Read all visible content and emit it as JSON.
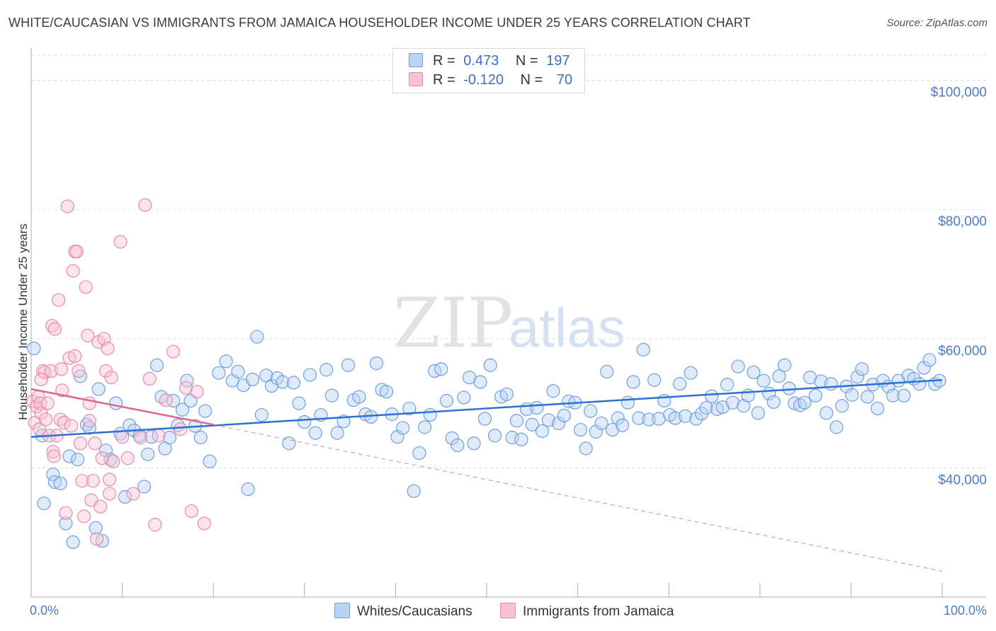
{
  "title": "WHITE/CAUCASIAN VS IMMIGRANTS FROM JAMAICA HOUSEHOLDER INCOME UNDER 25 YEARS CORRELATION CHART",
  "source": "Source: ZipAtlas.com",
  "watermark": {
    "zip": "ZIP",
    "atlas": "atlas"
  },
  "legend_top": [
    {
      "r_label": "R =",
      "r_value": "0.473",
      "n_label": "N =",
      "n_value": "197"
    },
    {
      "r_label": "R =",
      "r_value": "-0.120",
      "n_label": "N =",
      "n_value": "70"
    }
  ],
  "colors": {
    "blue_fill": "#b9d3f3",
    "blue_stroke": "#6f9fdc",
    "blue_line": "#2f6fd4",
    "pink_fill": "#f7c3d3",
    "pink_stroke": "#e88aab",
    "pink_line": "#e0648f",
    "grid": "#dddddd",
    "axis": "#aaaaaa",
    "tick_text": "#4a7cc8"
  },
  "chart_data": {
    "type": "scatter",
    "title": "WHITE/CAUCASIAN VS IMMIGRANTS FROM JAMAICA HOUSEHOLDER INCOME UNDER 25 YEARS CORRELATION CHART",
    "xlabel": "",
    "ylabel": "Householder Income Under 25 years",
    "xlim": [
      0,
      100
    ],
    "ylim": [
      20000,
      105000
    ],
    "x_tick_labels": [
      "0.0%",
      "100.0%"
    ],
    "y_ticks": [
      40000,
      60000,
      80000,
      100000
    ],
    "y_tick_labels": [
      "$40,000",
      "$60,000",
      "$80,000",
      "$100,000"
    ],
    "grid": true,
    "legend_placement": "bottom",
    "series": [
      {
        "name": "Whites/Caucasians",
        "color": "#6f9fdc",
        "trend": {
          "x0": 0,
          "y0": 44800,
          "x1": 100,
          "y1": 53600
        },
        "points": [
          [
            0.3,
            58500
          ],
          [
            1.2,
            45000
          ],
          [
            1.4,
            34500
          ],
          [
            2.4,
            39000
          ],
          [
            2.6,
            37800
          ],
          [
            3.2,
            37600
          ],
          [
            3.8,
            31400
          ],
          [
            4.2,
            41800
          ],
          [
            4.6,
            28500
          ],
          [
            5.1,
            41300
          ],
          [
            5.4,
            54200
          ],
          [
            6.1,
            46700
          ],
          [
            6.4,
            46200
          ],
          [
            7.1,
            30700
          ],
          [
            7.4,
            52200
          ],
          [
            7.8,
            28700
          ],
          [
            8.2,
            42700
          ],
          [
            8.7,
            41300
          ],
          [
            9.3,
            50000
          ],
          [
            9.8,
            45300
          ],
          [
            10.3,
            35500
          ],
          [
            10.8,
            46600
          ],
          [
            11.3,
            45800
          ],
          [
            11.9,
            45000
          ],
          [
            12.4,
            37100
          ],
          [
            12.8,
            42100
          ],
          [
            13.2,
            44800
          ],
          [
            13.8,
            55900
          ],
          [
            14.3,
            51000
          ],
          [
            14.7,
            43000
          ],
          [
            15.2,
            44700
          ],
          [
            15.6,
            50400
          ],
          [
            16.1,
            46600
          ],
          [
            16.6,
            49000
          ],
          [
            17.1,
            53500
          ],
          [
            17.5,
            50400
          ],
          [
            18.0,
            46500
          ],
          [
            18.6,
            44700
          ],
          [
            19.1,
            48800
          ],
          [
            19.6,
            41000
          ],
          [
            20.6,
            54700
          ],
          [
            21.4,
            56500
          ],
          [
            22.1,
            53500
          ],
          [
            22.7,
            54900
          ],
          [
            23.3,
            52800
          ],
          [
            23.8,
            36700
          ],
          [
            24.3,
            53700
          ],
          [
            24.8,
            60300
          ],
          [
            25.3,
            48200
          ],
          [
            25.8,
            54300
          ],
          [
            26.4,
            52700
          ],
          [
            27.0,
            53900
          ],
          [
            27.6,
            53300
          ],
          [
            28.3,
            43800
          ],
          [
            28.8,
            53200
          ],
          [
            29.4,
            50000
          ],
          [
            30.0,
            47100
          ],
          [
            30.6,
            54400
          ],
          [
            31.2,
            45400
          ],
          [
            31.8,
            48200
          ],
          [
            32.4,
            55200
          ],
          [
            33.0,
            51200
          ],
          [
            33.6,
            45400
          ],
          [
            34.3,
            47200
          ],
          [
            34.8,
            55900
          ],
          [
            35.4,
            50500
          ],
          [
            36.0,
            51000
          ],
          [
            36.7,
            48300
          ],
          [
            37.3,
            47900
          ],
          [
            37.9,
            56200
          ],
          [
            38.5,
            52100
          ],
          [
            39.0,
            51800
          ],
          [
            39.6,
            48300
          ],
          [
            40.2,
            44800
          ],
          [
            40.8,
            46200
          ],
          [
            41.5,
            49200
          ],
          [
            42.0,
            36400
          ],
          [
            42.6,
            42300
          ],
          [
            43.2,
            46300
          ],
          [
            43.8,
            48200
          ],
          [
            44.3,
            55000
          ],
          [
            45.0,
            55300
          ],
          [
            45.6,
            50400
          ],
          [
            46.2,
            44600
          ],
          [
            46.8,
            43500
          ],
          [
            47.5,
            50900
          ],
          [
            48.1,
            54000
          ],
          [
            48.6,
            43800
          ],
          [
            49.3,
            53300
          ],
          [
            49.8,
            47600
          ],
          [
            50.4,
            55900
          ],
          [
            50.9,
            45000
          ],
          [
            51.6,
            51000
          ],
          [
            52.2,
            51400
          ],
          [
            52.8,
            44700
          ],
          [
            53.3,
            47300
          ],
          [
            53.8,
            44400
          ],
          [
            54.4,
            49100
          ],
          [
            55.0,
            46700
          ],
          [
            55.5,
            49300
          ],
          [
            56.1,
            45700
          ],
          [
            56.8,
            47400
          ],
          [
            57.3,
            51900
          ],
          [
            57.9,
            46900
          ],
          [
            58.5,
            48100
          ],
          [
            59.0,
            50300
          ],
          [
            59.7,
            50100
          ],
          [
            60.3,
            45900
          ],
          [
            60.9,
            43000
          ],
          [
            61.4,
            48800
          ],
          [
            62.0,
            45600
          ],
          [
            62.6,
            46900
          ],
          [
            63.2,
            54900
          ],
          [
            63.8,
            45900
          ],
          [
            64.4,
            47700
          ],
          [
            64.9,
            46600
          ],
          [
            65.5,
            50100
          ],
          [
            66.1,
            53300
          ],
          [
            66.7,
            47700
          ],
          [
            67.2,
            58300
          ],
          [
            67.8,
            47500
          ],
          [
            68.4,
            53600
          ],
          [
            68.9,
            47600
          ],
          [
            69.5,
            50400
          ],
          [
            70.1,
            48200
          ],
          [
            70.7,
            47700
          ],
          [
            71.2,
            53000
          ],
          [
            71.8,
            48000
          ],
          [
            72.4,
            54700
          ],
          [
            73.0,
            47600
          ],
          [
            73.6,
            48400
          ],
          [
            74.1,
            49300
          ],
          [
            74.7,
            51100
          ],
          [
            75.3,
            49100
          ],
          [
            75.9,
            49400
          ],
          [
            76.4,
            52900
          ],
          [
            77.0,
            50100
          ],
          [
            77.6,
            55700
          ],
          [
            78.2,
            49600
          ],
          [
            78.7,
            51200
          ],
          [
            79.3,
            54800
          ],
          [
            79.8,
            48500
          ],
          [
            80.4,
            53500
          ],
          [
            81.0,
            51500
          ],
          [
            81.5,
            50200
          ],
          [
            82.1,
            54200
          ],
          [
            82.7,
            55900
          ],
          [
            83.2,
            52300
          ],
          [
            83.8,
            50000
          ],
          [
            84.4,
            49700
          ],
          [
            84.9,
            50100
          ],
          [
            85.5,
            54000
          ],
          [
            86.1,
            51200
          ],
          [
            86.7,
            53400
          ],
          [
            87.3,
            48500
          ],
          [
            87.8,
            53000
          ],
          [
            88.4,
            46300
          ],
          [
            89.0,
            49600
          ],
          [
            89.5,
            52600
          ],
          [
            90.1,
            51300
          ],
          [
            90.7,
            54100
          ],
          [
            91.2,
            55300
          ],
          [
            91.8,
            51000
          ],
          [
            92.4,
            52900
          ],
          [
            92.9,
            49200
          ],
          [
            93.5,
            53500
          ],
          [
            94.1,
            52600
          ],
          [
            94.6,
            51200
          ],
          [
            95.2,
            53500
          ],
          [
            95.8,
            51200
          ],
          [
            96.3,
            54300
          ],
          [
            96.9,
            53800
          ],
          [
            97.5,
            53000
          ],
          [
            98.0,
            55500
          ],
          [
            98.6,
            56700
          ],
          [
            99.2,
            53000
          ],
          [
            99.7,
            53500
          ]
        ]
      },
      {
        "name": "Immigrants from Jamaica",
        "color": "#e88aab",
        "trend": {
          "x0": 0,
          "y0": 52200,
          "x1": 20,
          "y1": 46700,
          "dash_to": {
            "x": 100,
            "y": 24000
          }
        },
        "points": [
          [
            0.2,
            50300
          ],
          [
            0.4,
            47000
          ],
          [
            0.6,
            49500
          ],
          [
            0.8,
            51000
          ],
          [
            0.9,
            46000
          ],
          [
            1.0,
            50000
          ],
          [
            1.1,
            48500
          ],
          [
            1.3,
            55000
          ],
          [
            1.5,
            54800
          ],
          [
            1.6,
            47500
          ],
          [
            1.8,
            50000
          ],
          [
            2.0,
            45000
          ],
          [
            2.2,
            55000
          ],
          [
            2.3,
            62000
          ],
          [
            2.4,
            42500
          ],
          [
            2.6,
            61500
          ],
          [
            2.8,
            45000
          ],
          [
            3.0,
            66000
          ],
          [
            3.2,
            47500
          ],
          [
            3.4,
            52000
          ],
          [
            3.6,
            47000
          ],
          [
            3.8,
            33000
          ],
          [
            4.0,
            80500
          ],
          [
            4.2,
            57000
          ],
          [
            4.4,
            46500
          ],
          [
            4.6,
            70500
          ],
          [
            4.8,
            73500
          ],
          [
            5.0,
            73500
          ],
          [
            5.2,
            55000
          ],
          [
            5.4,
            43800
          ],
          [
            5.6,
            38000
          ],
          [
            5.8,
            32500
          ],
          [
            6.0,
            68000
          ],
          [
            6.2,
            60500
          ],
          [
            6.4,
            50000
          ],
          [
            6.6,
            35000
          ],
          [
            6.8,
            38000
          ],
          [
            7.0,
            43800
          ],
          [
            7.2,
            29000
          ],
          [
            7.4,
            59500
          ],
          [
            7.6,
            34000
          ],
          [
            7.8,
            41500
          ],
          [
            8.0,
            60000
          ],
          [
            8.2,
            55000
          ],
          [
            8.4,
            58500
          ],
          [
            8.6,
            36000
          ],
          [
            8.8,
            54000
          ],
          [
            9.0,
            41000
          ],
          [
            9.8,
            75000
          ],
          [
            10.6,
            41500
          ],
          [
            11.2,
            36000
          ],
          [
            12.5,
            80700
          ],
          [
            13.0,
            53800
          ],
          [
            13.6,
            31200
          ],
          [
            14.0,
            45000
          ],
          [
            14.8,
            50500
          ],
          [
            15.6,
            58000
          ],
          [
            16.4,
            46000
          ],
          [
            17.0,
            52400
          ],
          [
            17.6,
            33300
          ],
          [
            18.2,
            51800
          ],
          [
            19.0,
            31400
          ],
          [
            12.0,
            44700
          ],
          [
            6.4,
            47300
          ],
          [
            2.5,
            41800
          ],
          [
            3.3,
            55300
          ],
          [
            4.8,
            57300
          ],
          [
            10.0,
            44800
          ],
          [
            1.1,
            53700
          ],
          [
            8.6,
            38200
          ]
        ]
      }
    ]
  },
  "bottom_legend": [
    {
      "label": "Whites/Caucasians"
    },
    {
      "label": "Immigrants from Jamaica"
    }
  ]
}
